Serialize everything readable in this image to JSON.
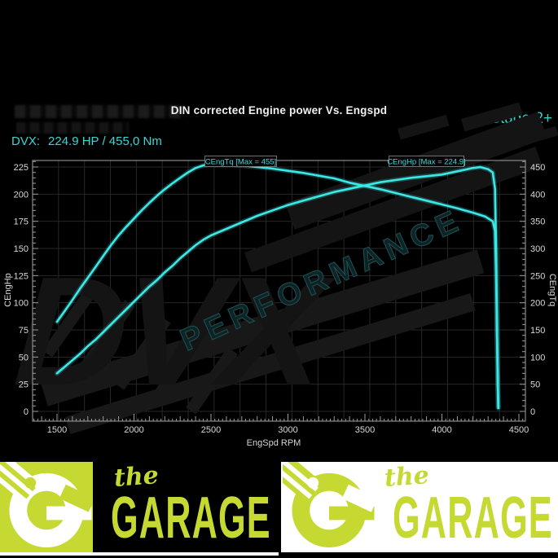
{
  "header": {
    "title": "DIN corrected Engine power Vs. Engspd",
    "stage_label": "Stage 2+",
    "result_label": "DVX:",
    "result_value": "224.9 HP / 455,0 Nm"
  },
  "watermark": {
    "brand": "DVX",
    "word": "PERFORMANCE"
  },
  "chart_data": {
    "type": "line",
    "title": "DIN corrected Engine power Vs. Engspd",
    "xlabel": "EngSpd RPM",
    "ylabel_left": "CEngHp",
    "ylabel_right": "CEngTq",
    "grid": true,
    "xlim": [
      1341,
      4542
    ],
    "ylim_left": [
      0,
      231
    ],
    "ylim_right": [
      0,
      462
    ],
    "x_ticks": [
      1500,
      2000,
      2500,
      3000,
      3500,
      4000,
      4500
    ],
    "y_left_ticks": [
      0,
      25,
      50,
      75,
      100,
      125,
      150,
      175,
      200,
      225
    ],
    "y_right_ticks": [
      0,
      50,
      100,
      150,
      200,
      250,
      300,
      350,
      400,
      450
    ],
    "series": [
      {
        "name": "CEngTq",
        "label": "CEngTq [Max = 455]",
        "axis": "right",
        "unit": "Nm",
        "max": 455,
        "color": "#3ce8e6",
        "points": [
          [
            1500,
            165
          ],
          [
            1550,
            185
          ],
          [
            1600,
            205
          ],
          [
            1650,
            226
          ],
          [
            1700,
            246
          ],
          [
            1750,
            266
          ],
          [
            1800,
            286
          ],
          [
            1850,
            306
          ],
          [
            1900,
            324
          ],
          [
            1950,
            340
          ],
          [
            2000,
            355
          ],
          [
            2050,
            370
          ],
          [
            2100,
            384
          ],
          [
            2150,
            397
          ],
          [
            2200,
            409
          ],
          [
            2250,
            420
          ],
          [
            2300,
            430
          ],
          [
            2350,
            440
          ],
          [
            2400,
            448
          ],
          [
            2450,
            453
          ],
          [
            2500,
            455
          ],
          [
            2600,
            455
          ],
          [
            2700,
            453
          ],
          [
            2800,
            450
          ],
          [
            2900,
            447
          ],
          [
            3000,
            443
          ],
          [
            3100,
            439
          ],
          [
            3200,
            434
          ],
          [
            3300,
            429
          ],
          [
            3400,
            421
          ],
          [
            3500,
            415
          ],
          [
            3600,
            409
          ],
          [
            3700,
            402
          ],
          [
            3800,
            395
          ],
          [
            3900,
            388
          ],
          [
            4000,
            381
          ],
          [
            4100,
            374
          ],
          [
            4200,
            366
          ],
          [
            4280,
            359
          ],
          [
            4330,
            350
          ],
          [
            4345,
            332
          ],
          [
            4352,
            260
          ],
          [
            4358,
            140
          ],
          [
            4363,
            50
          ],
          [
            4366,
            8
          ]
        ]
      },
      {
        "name": "CEngHp",
        "label": "CEngHp [Max = 224.9]",
        "axis": "left",
        "unit": "HP",
        "max": 224.9,
        "color": "#3ce8e6",
        "points": [
          [
            1500,
            35
          ],
          [
            1550,
            41
          ],
          [
            1600,
            47
          ],
          [
            1650,
            53
          ],
          [
            1700,
            60
          ],
          [
            1750,
            66
          ],
          [
            1800,
            73
          ],
          [
            1850,
            80
          ],
          [
            1900,
            87
          ],
          [
            1950,
            94
          ],
          [
            2000,
            101
          ],
          [
            2050,
            108
          ],
          [
            2100,
            115
          ],
          [
            2150,
            121
          ],
          [
            2200,
            128
          ],
          [
            2250,
            134
          ],
          [
            2300,
            141
          ],
          [
            2350,
            147
          ],
          [
            2400,
            153
          ],
          [
            2450,
            158
          ],
          [
            2500,
            162
          ],
          [
            2600,
            168
          ],
          [
            2700,
            174
          ],
          [
            2800,
            180
          ],
          [
            2900,
            185
          ],
          [
            3000,
            190
          ],
          [
            3100,
            194
          ],
          [
            3200,
            198
          ],
          [
            3300,
            202
          ],
          [
            3400,
            205
          ],
          [
            3500,
            208
          ],
          [
            3600,
            211
          ],
          [
            3700,
            213
          ],
          [
            3800,
            215
          ],
          [
            3900,
            216.5
          ],
          [
            4000,
            218
          ],
          [
            4100,
            221
          ],
          [
            4150,
            222.5
          ],
          [
            4200,
            224
          ],
          [
            4250,
            224.9
          ],
          [
            4300,
            223
          ],
          [
            4330,
            220
          ],
          [
            4345,
            205
          ],
          [
            4352,
            150
          ],
          [
            4358,
            70
          ],
          [
            4363,
            25
          ],
          [
            4366,
            3
          ]
        ]
      }
    ]
  },
  "footer": {
    "logos": [
      {
        "variant": "green-on-black",
        "the": "the",
        "name": "GARAGE"
      },
      {
        "variant": "green-on-white",
        "the": "the",
        "name": "GARAGE"
      }
    ]
  },
  "colors": {
    "background": "#000000",
    "curve": "#3ce8e6",
    "accent_text": "#38d6d4",
    "stage_text": "#2fd3c6",
    "grid": "#272727",
    "axis": "#9c9c9c",
    "tick_text": "#d8d8d8",
    "logo_green": "#c5d932"
  }
}
